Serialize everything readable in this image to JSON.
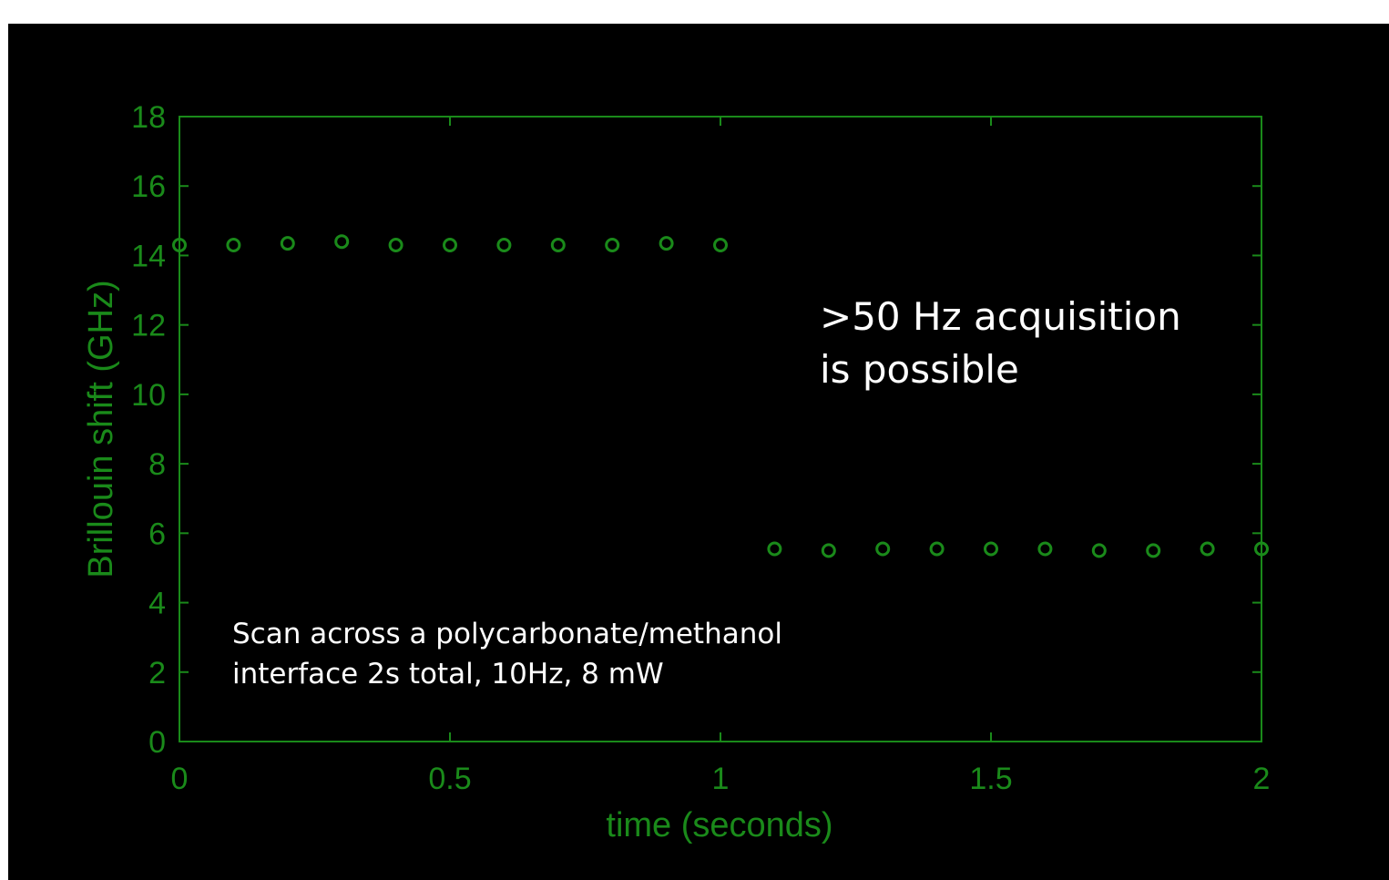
{
  "chart_data": {
    "type": "scatter",
    "xlabel": "time (seconds)",
    "ylabel": "Brillouin shift (GHz)",
    "xlim": [
      0,
      2
    ],
    "ylim": [
      0,
      18
    ],
    "x_ticks": [
      "0",
      "0.5",
      "1",
      "1.5",
      "2"
    ],
    "x_tick_values": [
      0,
      0.5,
      1,
      1.5,
      2
    ],
    "y_ticks": [
      "0",
      "2",
      "4",
      "6",
      "8",
      "10",
      "12",
      "14",
      "16",
      "18"
    ],
    "y_tick_values": [
      0,
      2,
      4,
      6,
      8,
      10,
      12,
      14,
      16,
      18
    ],
    "grid": false,
    "series": [
      {
        "x": [
          0,
          0.1,
          0.2,
          0.3,
          0.4,
          0.5,
          0.6,
          0.7,
          0.8,
          0.9,
          1.0,
          1.1,
          1.2,
          1.3,
          1.4,
          1.5,
          1.6,
          1.7,
          1.8,
          1.9,
          2.0
        ],
        "y": [
          14.3,
          14.3,
          14.35,
          14.4,
          14.3,
          14.3,
          14.3,
          14.3,
          14.3,
          14.35,
          14.3,
          5.55,
          5.5,
          5.55,
          5.55,
          5.55,
          5.55,
          5.5,
          5.5,
          5.55,
          5.55
        ]
      }
    ],
    "annotations": [
      {
        "lines": [
          ">50 Hz acquisition",
          "is possible"
        ]
      },
      {
        "lines": [
          "Scan across a polycarbonate/methanol",
          "interface 2s total, 10Hz, 8 mW"
        ]
      }
    ],
    "colors": {
      "axis": "#1a8a1a",
      "marker": "#1a8a1a",
      "annotation": "#ffffff",
      "background": "#000000"
    }
  }
}
